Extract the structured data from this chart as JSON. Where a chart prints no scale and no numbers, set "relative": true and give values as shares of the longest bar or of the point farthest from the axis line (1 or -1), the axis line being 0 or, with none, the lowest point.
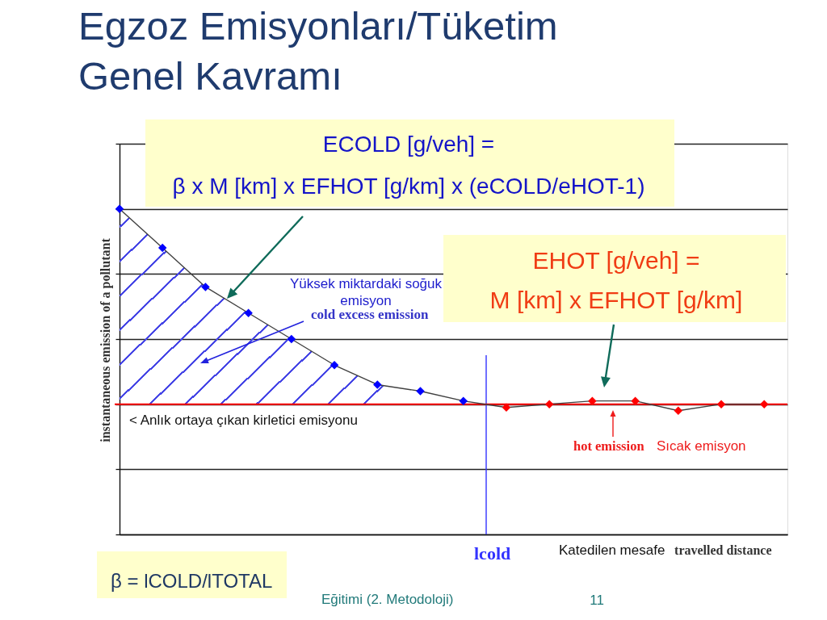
{
  "chart_data": {
    "type": "line",
    "title": "Egzoz Emisyonları/Tüketim\nGenel Kavramı",
    "xlabel": "travelled distance",
    "ylabel": "instantaneous emission of a pollutant",
    "relative": true,
    "categories": [
      null,
      null,
      null,
      null,
      null,
      null,
      null,
      null,
      null,
      null,
      null,
      null,
      null,
      null,
      null,
      null
    ],
    "grid": "y",
    "series": [
      {
        "color": "#404040",
        "marker": "diamond",
        "values": [
          1.0,
          0.88,
          0.76,
          0.68,
          0.6,
          0.52,
          0.46,
          0.44,
          0.41,
          0.39,
          0.4,
          0.41,
          0.41,
          0.38,
          0.4,
          0.4
        ],
        "colors": [
          "#0000ff",
          "#0000ff",
          "#0000ff",
          "#0000ff",
          "#0000ff",
          "#0000ff",
          "#0000ff",
          "#0000ff",
          "#0000ff",
          "#ff0000",
          "#ff0000",
          "#ff0000",
          "#ff0000",
          "#ff0000",
          "#ff0000",
          "#ff0000"
        ],
        "upper": [
          1.0,
          0.88,
          0.76,
          0.68,
          0.6,
          0.52,
          0.46,
          0.44,
          0.41,
          null,
          null,
          null,
          null,
          null,
          null,
          null
        ],
        "lower": [
          0.4,
          0.4,
          0.4,
          0.4,
          0.4,
          0.4,
          0.4,
          0.4,
          0.4,
          null,
          null,
          null,
          null,
          null,
          null,
          null
        ]
      }
    ],
    "ref_lines": [
      {
        "axis": "y",
        "value": 0.4,
        "color": "#ff0000"
      }
    ],
    "annotations": [
      "ECOLD [g/veh] =\nβ x M [km] x EFHOT [g/km] x (eCOLD/eHOT-1)",
      "EHOT [g/veh] =\nM [km] x EFHOT [g/km]",
      "β = lCOLD/lTOTAL",
      "Yüksek miktardaki soğuk\nemisyon",
      "cold excess emission",
      "< Anlık ortaya çıkan kirletici emisyonu",
      "hot emission",
      "Sıcak emisyon",
      "Katedilen mesafe",
      "Eğitimi (2. Metodoloji)",
      "11",
      "lcold"
    ]
  }
}
